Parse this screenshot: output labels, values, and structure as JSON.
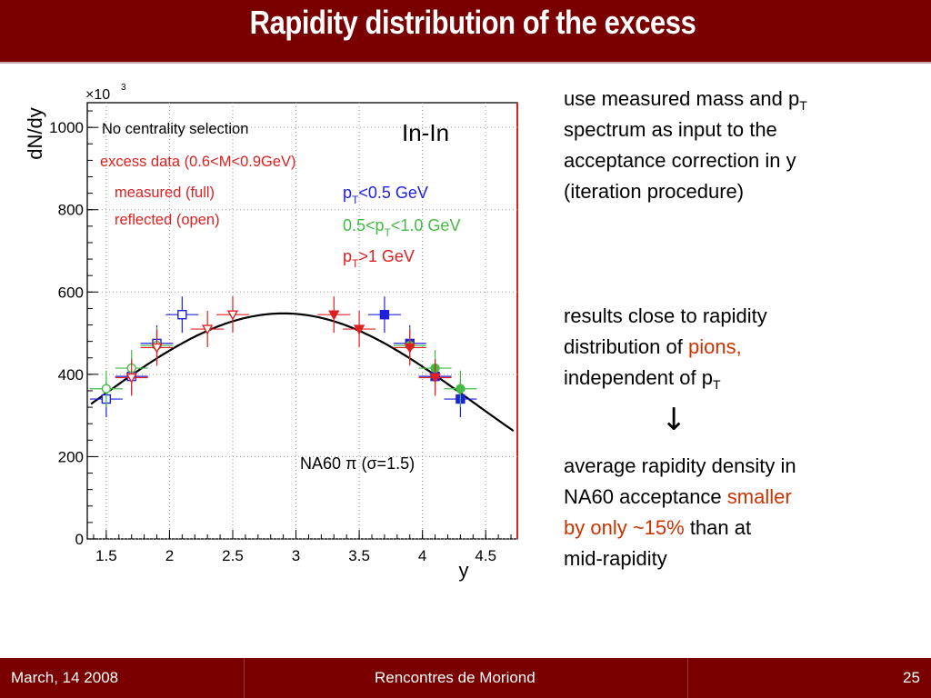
{
  "slide": {
    "title": "Rapidity distribution of the excess",
    "colors": {
      "header": "#7a0000",
      "red_text": "#cc3300",
      "blue": "#1f1fe0",
      "green": "#44bb44",
      "red": "#e02020"
    }
  },
  "plot": {
    "exponent": "×10",
    "exponent_sup": "3",
    "ylabel": "dN/dy",
    "xlabel": "y",
    "system": "In-In",
    "centrality": "No centrality selection",
    "excess_label": "excess data (0.6<M<0.9GeV)",
    "measured_label": "measured (full)",
    "reflected_label": "reflected (open)",
    "pt_low_a": "p",
    "pt_low_sub": "T",
    "pt_low_b": "<0.5 GeV",
    "pt_mid_a": "0.5<p",
    "pt_mid_sub": "T",
    "pt_mid_b": "<1.0 GeV",
    "pt_high_a": "p",
    "pt_high_sub": "T",
    "pt_high_b": ">1 GeV",
    "fit_label": "NA60 π (σ=1.5)"
  },
  "chart_data": {
    "type": "scatter",
    "title": "",
    "xlabel": "y",
    "ylabel": "dN/dy",
    "y_multiplier": "×10^3",
    "xlim": [
      1.35,
      4.75
    ],
    "ylim": [
      0,
      1060
    ],
    "x_ticks": [
      "1.5",
      "2",
      "2.5",
      "3",
      "3.5",
      "4",
      "4.5"
    ],
    "x_tick_values": [
      1.5,
      2,
      2.5,
      3,
      3.5,
      4,
      4.5
    ],
    "y_ticks": [
      "0",
      "200",
      "400",
      "600",
      "800",
      "1000"
    ],
    "y_tick_values": [
      0,
      200,
      400,
      600,
      800,
      1000
    ],
    "series": [
      {
        "name": "p_T<0.5 GeV",
        "color": "#1f1fe0",
        "measured": [
          [
            4.3,
            340
          ],
          [
            4.1,
            395
          ],
          [
            3.9,
            475
          ],
          [
            3.7,
            545
          ]
        ],
        "reflected": [
          [
            1.5,
            340
          ],
          [
            1.7,
            395
          ],
          [
            1.9,
            475
          ],
          [
            2.1,
            545
          ]
        ]
      },
      {
        "name": "0.5<p_T<1.0 GeV",
        "color": "#44bb44",
        "measured": [
          [
            4.3,
            365
          ],
          [
            4.1,
            415
          ],
          [
            3.9,
            470
          ]
        ],
        "reflected": [
          [
            1.5,
            365
          ],
          [
            1.7,
            415
          ],
          [
            1.9,
            470
          ]
        ]
      },
      {
        "name": "p_T>1 GeV",
        "color": "#e02020",
        "measured": [
          [
            4.1,
            392
          ],
          [
            3.9,
            465
          ],
          [
            3.5,
            510
          ],
          [
            3.3,
            545
          ]
        ],
        "reflected": [
          [
            1.7,
            392
          ],
          [
            1.9,
            465
          ],
          [
            2.3,
            510
          ],
          [
            2.5,
            545
          ]
        ]
      }
    ],
    "fit": {
      "name": "NA60 π (σ=1.5)",
      "center": 2.9,
      "sigma": 1.5,
      "amplitude": 548
    }
  },
  "bullets": {
    "b1_line1_a": "use measured mass and p",
    "b1_line1_sub": "T",
    "b1_line2": "spectrum as input to the",
    "b1_line3": "acceptance correction in y",
    "b1_line4": "(iteration procedure)",
    "b2_line1": "results close to rapidity",
    "b2_line2_a": "distribution of ",
    "b2_line2_red": "pions",
    "b2_line2_b": ",",
    "b2_line3_a": "independent of p",
    "b2_line3_sub": "T",
    "arrow": "↓",
    "b3_line1": "average rapidity density in",
    "b3_line2_a": "NA60 acceptance ",
    "b3_line2_red": "smaller",
    "b3_line3_red": "by only ~15%",
    "b3_line3_b": " than at",
    "b3_line4": "mid-rapidity"
  },
  "footer": {
    "date": "March, 14 2008",
    "conference": "Rencontres de Moriond",
    "page": "25"
  }
}
